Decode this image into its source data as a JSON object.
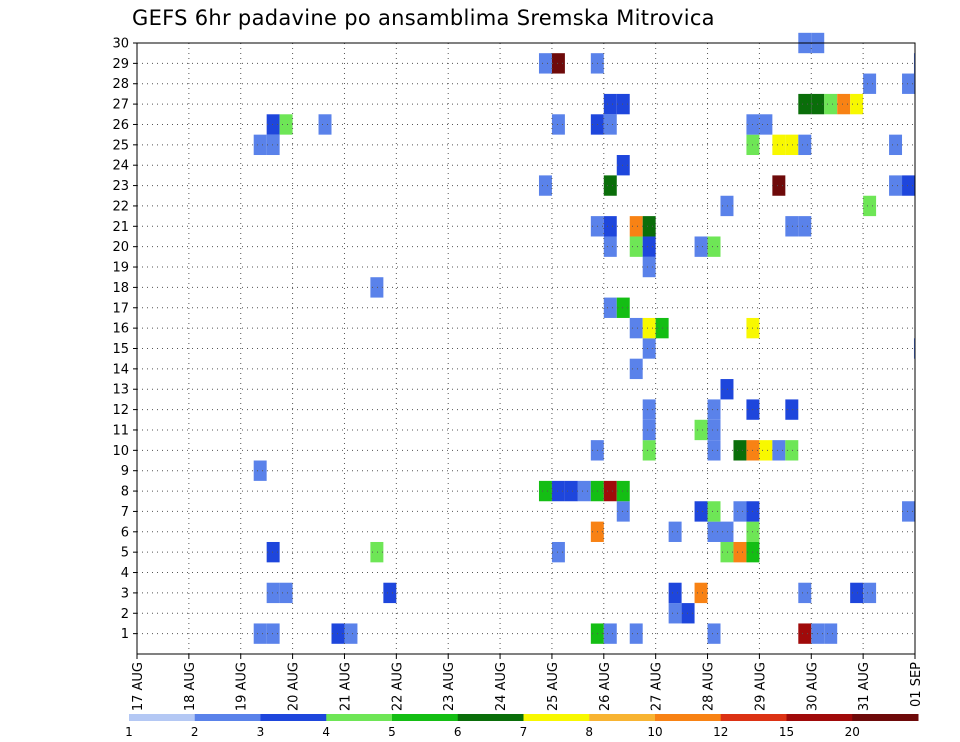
{
  "chart_data": {
    "type": "heatmap",
    "title": "GEFS 6hr padavine po ansamblima Sremska Mitrovica",
    "xlabel": "",
    "ylabel": "",
    "x_ticks": [
      "17 AUG",
      "18 AUG",
      "19 AUG",
      "20 AUG",
      "21 AUG",
      "22 AUG",
      "23 AUG",
      "24 AUG",
      "25 AUG",
      "26 AUG",
      "27 AUG",
      "28 AUG",
      "29 AUG",
      "30 AUG",
      "31 AUG",
      "01 SEP"
    ],
    "y_ticks": [
      1,
      2,
      3,
      4,
      5,
      6,
      7,
      8,
      9,
      10,
      11,
      12,
      13,
      14,
      15,
      16,
      17,
      18,
      19,
      20,
      21,
      22,
      23,
      24,
      25,
      26,
      27,
      28,
      29,
      30
    ],
    "x_range_days": [
      0,
      15
    ],
    "y_range": [
      0,
      30
    ],
    "grid": true,
    "colorbar": {
      "labels": [
        "1",
        "2",
        "3",
        "4",
        "5",
        "6",
        "7",
        "8",
        "10",
        "12",
        "15",
        "20"
      ],
      "colors": [
        "#b4c8f4",
        "#5a82ea",
        "#1e46dc",
        "#6ee656",
        "#14be14",
        "#0a6e0a",
        "#f8f800",
        "#f8b432",
        "#f88214",
        "#dc3214",
        "#a00a0a",
        "#6e0a0a"
      ]
    },
    "cells": [
      [
        2.25,
        1,
        1
      ],
      [
        2.5,
        1,
        1
      ],
      [
        3.75,
        1,
        2
      ],
      [
        4,
        1,
        1
      ],
      [
        8.75,
        1,
        4
      ],
      [
        9,
        1,
        1
      ],
      [
        9.5,
        1,
        1
      ],
      [
        11,
        1,
        1
      ],
      [
        12.75,
        1,
        10
      ],
      [
        13,
        1,
        1
      ],
      [
        13.25,
        1,
        1
      ],
      [
        10.25,
        2,
        1
      ],
      [
        10.5,
        2,
        2
      ],
      [
        2.5,
        3,
        1
      ],
      [
        2.75,
        3,
        1
      ],
      [
        4.75,
        3,
        2
      ],
      [
        10.25,
        3,
        2
      ],
      [
        10.75,
        3,
        8
      ],
      [
        12.75,
        3,
        1
      ],
      [
        13.75,
        3,
        2
      ],
      [
        14,
        3,
        1
      ],
      [
        2.5,
        5,
        2
      ],
      [
        4.5,
        5,
        3
      ],
      [
        8,
        5,
        1
      ],
      [
        11.25,
        5,
        3
      ],
      [
        11.5,
        5,
        8
      ],
      [
        11.75,
        5,
        4
      ],
      [
        8.75,
        6,
        8
      ],
      [
        10.25,
        6,
        1
      ],
      [
        11,
        6,
        1
      ],
      [
        11.25,
        6,
        1
      ],
      [
        11.75,
        6,
        3
      ],
      [
        9.25,
        7,
        1
      ],
      [
        10.75,
        7,
        2
      ],
      [
        11,
        7,
        3
      ],
      [
        11.5,
        7,
        1
      ],
      [
        11.75,
        7,
        2
      ],
      [
        14.75,
        7,
        1
      ],
      [
        7.75,
        8,
        4
      ],
      [
        8,
        8,
        2
      ],
      [
        8.25,
        8,
        2
      ],
      [
        8.5,
        8,
        1
      ],
      [
        8.75,
        8,
        4
      ],
      [
        9,
        8,
        10
      ],
      [
        9.25,
        8,
        4
      ],
      [
        2.25,
        9,
        1
      ],
      [
        8.75,
        10,
        1
      ],
      [
        9.75,
        10,
        3
      ],
      [
        11,
        10,
        1
      ],
      [
        11.5,
        10,
        5
      ],
      [
        11.75,
        10,
        8
      ],
      [
        12,
        10,
        6
      ],
      [
        12.25,
        10,
        1
      ],
      [
        12.5,
        10,
        3
      ],
      [
        9.75,
        11,
        1
      ],
      [
        10.75,
        11,
        3
      ],
      [
        11,
        11,
        1
      ],
      [
        9.75,
        12,
        1
      ],
      [
        11,
        12,
        1
      ],
      [
        11.75,
        12,
        2
      ],
      [
        12.5,
        12,
        2
      ],
      [
        11.25,
        13,
        2
      ],
      [
        9.5,
        14,
        1
      ],
      [
        9.75,
        15,
        1
      ],
      [
        14.98,
        15,
        1
      ],
      [
        9.5,
        16,
        1
      ],
      [
        9.75,
        16,
        6
      ],
      [
        10,
        16,
        4
      ],
      [
        11.75,
        16,
        6
      ],
      [
        9,
        17,
        1
      ],
      [
        9.25,
        17,
        4
      ],
      [
        4.5,
        18,
        1
      ],
      [
        9.75,
        19,
        1
      ],
      [
        9,
        20,
        1
      ],
      [
        9.5,
        20,
        3
      ],
      [
        9.75,
        20,
        2
      ],
      [
        10.75,
        20,
        1
      ],
      [
        11,
        20,
        3
      ],
      [
        8.75,
        21,
        1
      ],
      [
        9,
        21,
        2
      ],
      [
        9.5,
        21,
        8
      ],
      [
        9.75,
        21,
        5
      ],
      [
        12.5,
        21,
        1
      ],
      [
        12.75,
        21,
        1
      ],
      [
        11.25,
        22,
        1
      ],
      [
        14,
        22,
        3
      ],
      [
        7.75,
        23,
        1
      ],
      [
        9,
        23,
        5
      ],
      [
        12.25,
        23,
        11
      ],
      [
        14.5,
        23,
        1
      ],
      [
        14.75,
        23,
        2
      ],
      [
        9.25,
        24,
        2
      ],
      [
        2.25,
        25,
        1
      ],
      [
        2.5,
        25,
        1
      ],
      [
        11.75,
        25,
        3
      ],
      [
        12.25,
        25,
        6
      ],
      [
        12.5,
        25,
        6
      ],
      [
        12.75,
        25,
        1
      ],
      [
        14.5,
        25,
        1
      ],
      [
        2.5,
        26,
        2
      ],
      [
        2.75,
        26,
        3
      ],
      [
        3.5,
        26,
        1
      ],
      [
        8,
        26,
        1
      ],
      [
        8.75,
        26,
        2
      ],
      [
        9,
        26,
        1
      ],
      [
        11.75,
        26,
        1
      ],
      [
        12,
        26,
        1
      ],
      [
        9,
        27,
        2
      ],
      [
        9.25,
        27,
        2
      ],
      [
        12.75,
        27,
        5
      ],
      [
        13,
        27,
        5
      ],
      [
        13.25,
        27,
        3
      ],
      [
        13.5,
        27,
        8
      ],
      [
        13.75,
        27,
        6
      ],
      [
        14,
        28,
        1
      ],
      [
        14.75,
        28,
        1
      ],
      [
        14.98,
        28,
        1
      ],
      [
        7.75,
        29,
        1
      ],
      [
        8,
        29,
        11
      ],
      [
        8.75,
        29,
        1
      ],
      [
        14.98,
        29,
        1
      ],
      [
        12.75,
        30,
        1
      ],
      [
        13,
        30,
        1
      ]
    ]
  }
}
